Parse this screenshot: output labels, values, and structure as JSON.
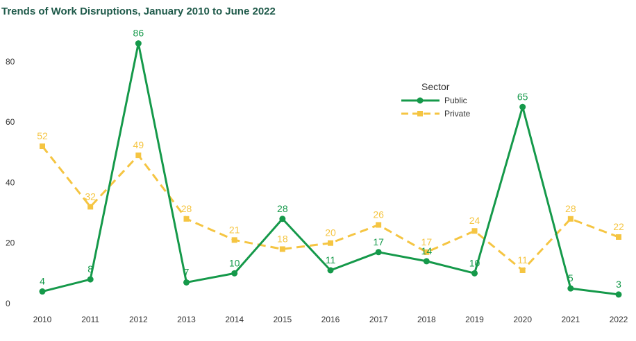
{
  "title": "Trends of Work Disruptions, January 2010 to June 2022",
  "chart_data": {
    "type": "line",
    "title": "Trends of Work Disruptions, January 2010 to June 2022",
    "xlabel": "",
    "ylabel": "",
    "categories": [
      "2010",
      "2011",
      "2012",
      "2013",
      "2014",
      "2015",
      "2016",
      "2017",
      "2018",
      "2019",
      "2020",
      "2021",
      "2022"
    ],
    "yticks": [
      "0",
      "20",
      "40",
      "60",
      "80"
    ],
    "ylim": [
      0,
      90
    ],
    "grid": false,
    "legend": {
      "title": "Sector",
      "placement": "upper-right-center"
    },
    "series": [
      {
        "name": "Public",
        "color": "#15994a",
        "marker": "circle",
        "line_style": "solid",
        "values": [
          4,
          8,
          86,
          7,
          10,
          28,
          11,
          17,
          14,
          10,
          65,
          5,
          3
        ]
      },
      {
        "name": "Private",
        "color": "#f5c542",
        "marker": "square",
        "line_style": "dashed",
        "values": [
          52,
          32,
          49,
          28,
          21,
          18,
          20,
          26,
          17,
          24,
          11,
          28,
          22
        ]
      }
    ]
  }
}
